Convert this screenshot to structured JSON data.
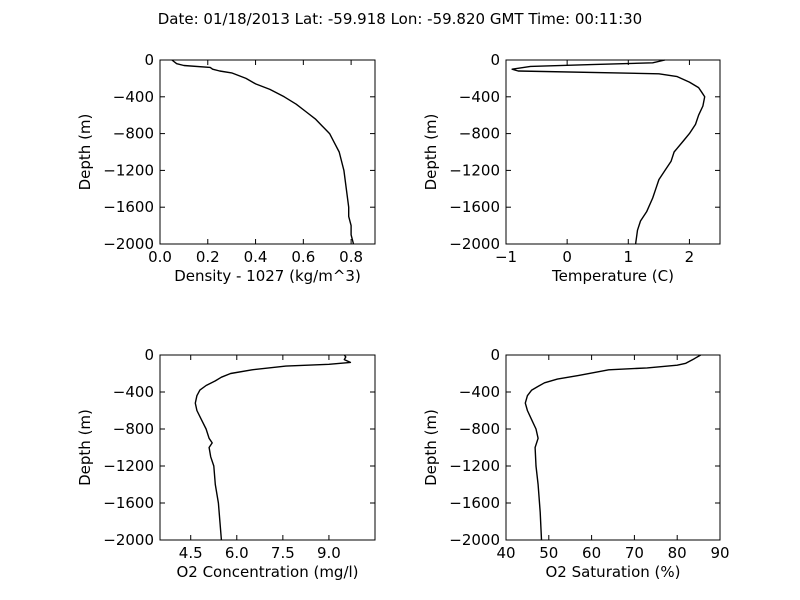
{
  "figure": {
    "title": "Date: 01/18/2013  Lat:  -59.918 Lon:  -59.820  GMT Time: 00:11:30"
  },
  "chart_data": [
    {
      "type": "line",
      "xlabel": "Density - 1027 (kg/m^3)",
      "ylabel": "Depth (m)",
      "xlim": [
        0.0,
        0.9
      ],
      "ylim": [
        -2000,
        0
      ],
      "xticks": [
        0.0,
        0.2,
        0.4,
        0.6,
        0.8
      ],
      "xtick_labels": [
        "0.0",
        "0.2",
        "0.4",
        "0.6",
        "0.8"
      ],
      "yticks": [
        0,
        -400,
        -800,
        -1200,
        -1600,
        -2000
      ],
      "ytick_labels": [
        "0",
        "−400",
        "−800",
        "−1200",
        "−1600",
        "−2000"
      ],
      "grid": false,
      "series": [
        {
          "x": [
            0.05,
            0.07,
            0.1,
            0.21,
            0.22,
            0.25,
            0.3,
            0.36,
            0.4,
            0.46,
            0.52,
            0.57,
            0.61,
            0.65,
            0.68,
            0.71,
            0.73,
            0.75,
            0.77,
            0.78,
            0.79,
            0.79,
            0.8,
            0.8,
            0.81
          ],
          "y": [
            0,
            -40,
            -60,
            -80,
            -100,
            -120,
            -140,
            -200,
            -260,
            -320,
            -400,
            -480,
            -560,
            -640,
            -720,
            -800,
            -900,
            -1000,
            -1200,
            -1400,
            -1600,
            -1700,
            -1800,
            -1900,
            -2000
          ]
        }
      ]
    },
    {
      "type": "line",
      "xlabel": "Temperature (C)",
      "ylabel": "Depth (m)",
      "xlim": [
        -1,
        2.5
      ],
      "ylim": [
        -2000,
        0
      ],
      "xticks": [
        -1,
        0,
        1,
        2
      ],
      "xtick_labels": [
        "−1",
        "0",
        "1",
        "2"
      ],
      "yticks": [
        0,
        -400,
        -800,
        -1200,
        -1600,
        -2000
      ],
      "ytick_labels": [
        "0",
        "−400",
        "−800",
        "−1200",
        "−1600",
        "−2000"
      ],
      "grid": false,
      "series": [
        {
          "x": [
            1.6,
            1.4,
            0.4,
            -0.6,
            -0.9,
            -0.8,
            1.5,
            1.8,
            2.0,
            2.15,
            2.2,
            2.25,
            2.22,
            2.15,
            2.1,
            2.0,
            1.9,
            1.8,
            1.75,
            1.7,
            1.6,
            1.5,
            1.45,
            1.4,
            1.3,
            1.2,
            1.15,
            1.12
          ],
          "y": [
            0,
            -30,
            -50,
            -70,
            -100,
            -120,
            -150,
            -180,
            -240,
            -300,
            -350,
            -400,
            -500,
            -600,
            -700,
            -800,
            -880,
            -960,
            -1000,
            -1100,
            -1200,
            -1300,
            -1400,
            -1500,
            -1650,
            -1750,
            -1850,
            -2000
          ]
        }
      ]
    },
    {
      "type": "line",
      "xlabel": "O2 Concentration (mg/l)",
      "ylabel": "Depth (m)",
      "xlim": [
        3.5,
        10.5
      ],
      "ylim": [
        -2000,
        0
      ],
      "xticks": [
        4.5,
        6.0,
        7.5,
        9.0
      ],
      "xtick_labels": [
        "4.5",
        "6.0",
        "7.5",
        "9.0"
      ],
      "yticks": [
        0,
        -400,
        -800,
        -1200,
        -1600,
        -2000
      ],
      "ytick_labels": [
        "0",
        "−400",
        "−800",
        "−1200",
        "−1600",
        "−2000"
      ],
      "grid": false,
      "series": [
        {
          "x": [
            9.5,
            9.55,
            9.5,
            9.7,
            9.0,
            7.6,
            6.5,
            5.8,
            5.5,
            5.3,
            5.0,
            4.8,
            4.7,
            4.65,
            4.7,
            4.85,
            5.0,
            5.1,
            5.2,
            5.1,
            5.15,
            5.25,
            5.3,
            5.4,
            5.45,
            5.5
          ],
          "y": [
            0,
            -20,
            -50,
            -80,
            -100,
            -120,
            -160,
            -200,
            -240,
            -280,
            -330,
            -380,
            -440,
            -520,
            -600,
            -700,
            -800,
            -900,
            -950,
            -1000,
            -1100,
            -1200,
            -1400,
            -1600,
            -1800,
            -2000
          ]
        }
      ]
    },
    {
      "type": "line",
      "xlabel": "O2 Saturation (%)",
      "ylabel": "Depth (m)",
      "xlim": [
        40,
        90
      ],
      "ylim": [
        -2000,
        0
      ],
      "xticks": [
        40,
        50,
        60,
        70,
        80,
        90
      ],
      "xtick_labels": [
        "40",
        "50",
        "60",
        "70",
        "80",
        "90"
      ],
      "yticks": [
        0,
        -400,
        -800,
        -1200,
        -1600,
        -2000
      ],
      "ytick_labels": [
        "0",
        "−400",
        "−800",
        "−1200",
        "−1600",
        "−2000"
      ],
      "grid": false,
      "series": [
        {
          "x": [
            85.5,
            84,
            82,
            80,
            73,
            64,
            57,
            52,
            49,
            47.5,
            46,
            45,
            44.5,
            45,
            46,
            47,
            47.5,
            46.8,
            47,
            47.5,
            48,
            48.3
          ],
          "y": [
            0,
            -40,
            -90,
            -110,
            -140,
            -160,
            -220,
            -260,
            -300,
            -340,
            -380,
            -440,
            -520,
            -600,
            -700,
            -800,
            -900,
            -1000,
            -1200,
            -1400,
            -1700,
            -2000
          ]
        }
      ]
    }
  ]
}
